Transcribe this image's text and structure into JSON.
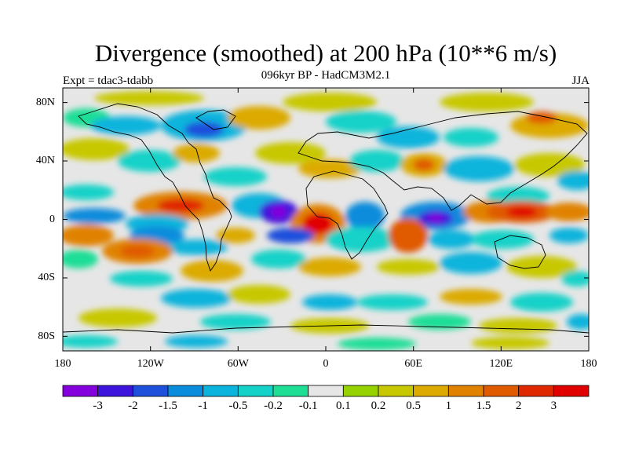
{
  "title": "Divergence (smoothed) at 200 hPa (10**6 m/s)",
  "subtitle": "096kyr BP - HadCM3M2.1",
  "experiment": "Expt = tdac3-tdabb",
  "season": "JJA",
  "map": {
    "projection": "cylindrical equidistant",
    "lon_range": [
      -180,
      180
    ],
    "lat_range": [
      -90,
      90
    ],
    "lat_tick_labels": [
      "80N",
      "40N",
      "0",
      "40S",
      "80S"
    ],
    "lon_tick_labels": [
      "180",
      "120W",
      "60W",
      "0",
      "60E",
      "120E",
      "180"
    ]
  },
  "colorbar": {
    "colors": [
      "#8400dc",
      "#3c14dc",
      "#1e50dc",
      "#0a8cdc",
      "#0ab4dc",
      "#14d2c8",
      "#1ede96",
      "#e6e6e6",
      "#96d200",
      "#c8c800",
      "#dcaa00",
      "#e08200",
      "#e05a00",
      "#e02800",
      "#e00000"
    ],
    "labels": [
      "-3",
      "-2",
      "-1.5",
      "-1",
      "-0.5",
      "-0.2",
      "-0.1",
      "0.1",
      "0.2",
      "0.5",
      "1",
      "1.5",
      "2",
      "3"
    ]
  }
}
